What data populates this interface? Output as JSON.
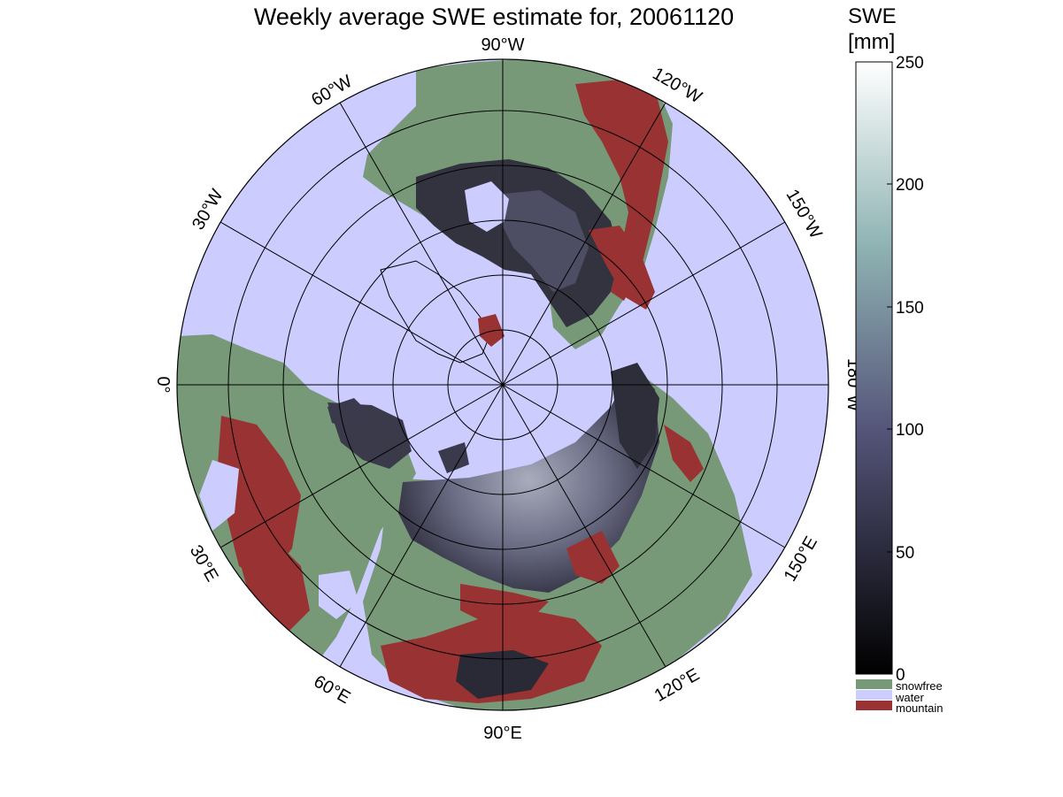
{
  "title": "Weekly average SWE estimate for, 20061120",
  "colorbar": {
    "title_line1": "SWE",
    "title_line2": "[mm]",
    "ticks": [
      "0",
      "50",
      "100",
      "150",
      "200",
      "250"
    ],
    "range": [
      0,
      250
    ],
    "colors": {
      "low": "#000000",
      "mid": "#55557a",
      "high_mid": "#8fb3b3",
      "top": "#ffffff"
    }
  },
  "legend": [
    {
      "label": "snowfree",
      "color": "#779977"
    },
    {
      "label": "water",
      "color": "#ccccff"
    },
    {
      "label": "mountain",
      "color": "#993333"
    }
  ],
  "longitude_labels": {
    "lon_90w": "90°W",
    "lon_120w": "120°W",
    "lon_150w": "150°W",
    "lon_180w": "180°W",
    "lon_150e": "150°E",
    "lon_120e": "120°E",
    "lon_90e": "90°E",
    "lon_60e": "60°E",
    "lon_30e": "30°E",
    "lon_0": "0°",
    "lon_30w": "30°W",
    "lon_60w": "60°W"
  },
  "map_colors": {
    "water": "#ccccff",
    "snowfree": "#779977",
    "mountain": "#993333",
    "snow_dark": "#2a2a38",
    "snow_mid": "#505068",
    "snow_light": "#9aa0b0"
  }
}
